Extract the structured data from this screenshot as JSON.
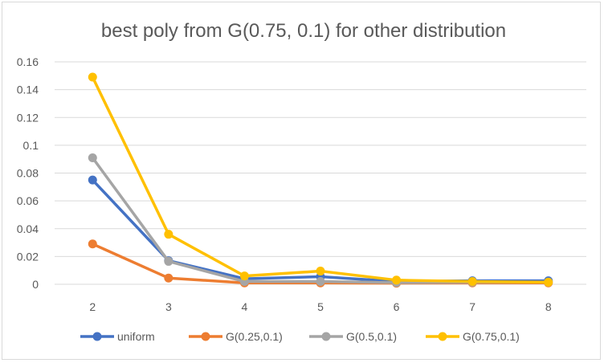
{
  "chart_data": {
    "type": "line",
    "title": "best poly from G(0.75, 0.1) for other distribution",
    "xlabel": "",
    "ylabel": "",
    "categories": [
      "2",
      "3",
      "4",
      "5",
      "6",
      "7",
      "8"
    ],
    "ylim": [
      0,
      0.16
    ],
    "yticks": [
      "0",
      "0.02",
      "0.04",
      "0.06",
      "0.08",
      "0.1",
      "0.12",
      "0.14",
      "0.16"
    ],
    "grid": "horizontal",
    "legend_position": "bottom",
    "series": [
      {
        "name": "uniform",
        "color": "#4472C4",
        "values": [
          0.075,
          0.017,
          0.004,
          0.0055,
          0.002,
          0.0025,
          0.0025
        ]
      },
      {
        "name": "G(0.25,0.1)",
        "color": "#ED7D31",
        "values": [
          0.029,
          0.0045,
          0.001,
          0.001,
          0.0008,
          0.001,
          0.001
        ]
      },
      {
        "name": "G(0.5,0.1)",
        "color": "#A5A5A5",
        "values": [
          0.091,
          0.0165,
          0.002,
          0.002,
          0.0012,
          0.0015,
          0.0015
        ]
      },
      {
        "name": "G(0.75,0.1)",
        "color": "#FFC000",
        "values": [
          0.149,
          0.036,
          0.006,
          0.0095,
          0.003,
          0.002,
          0.0015
        ]
      }
    ]
  }
}
